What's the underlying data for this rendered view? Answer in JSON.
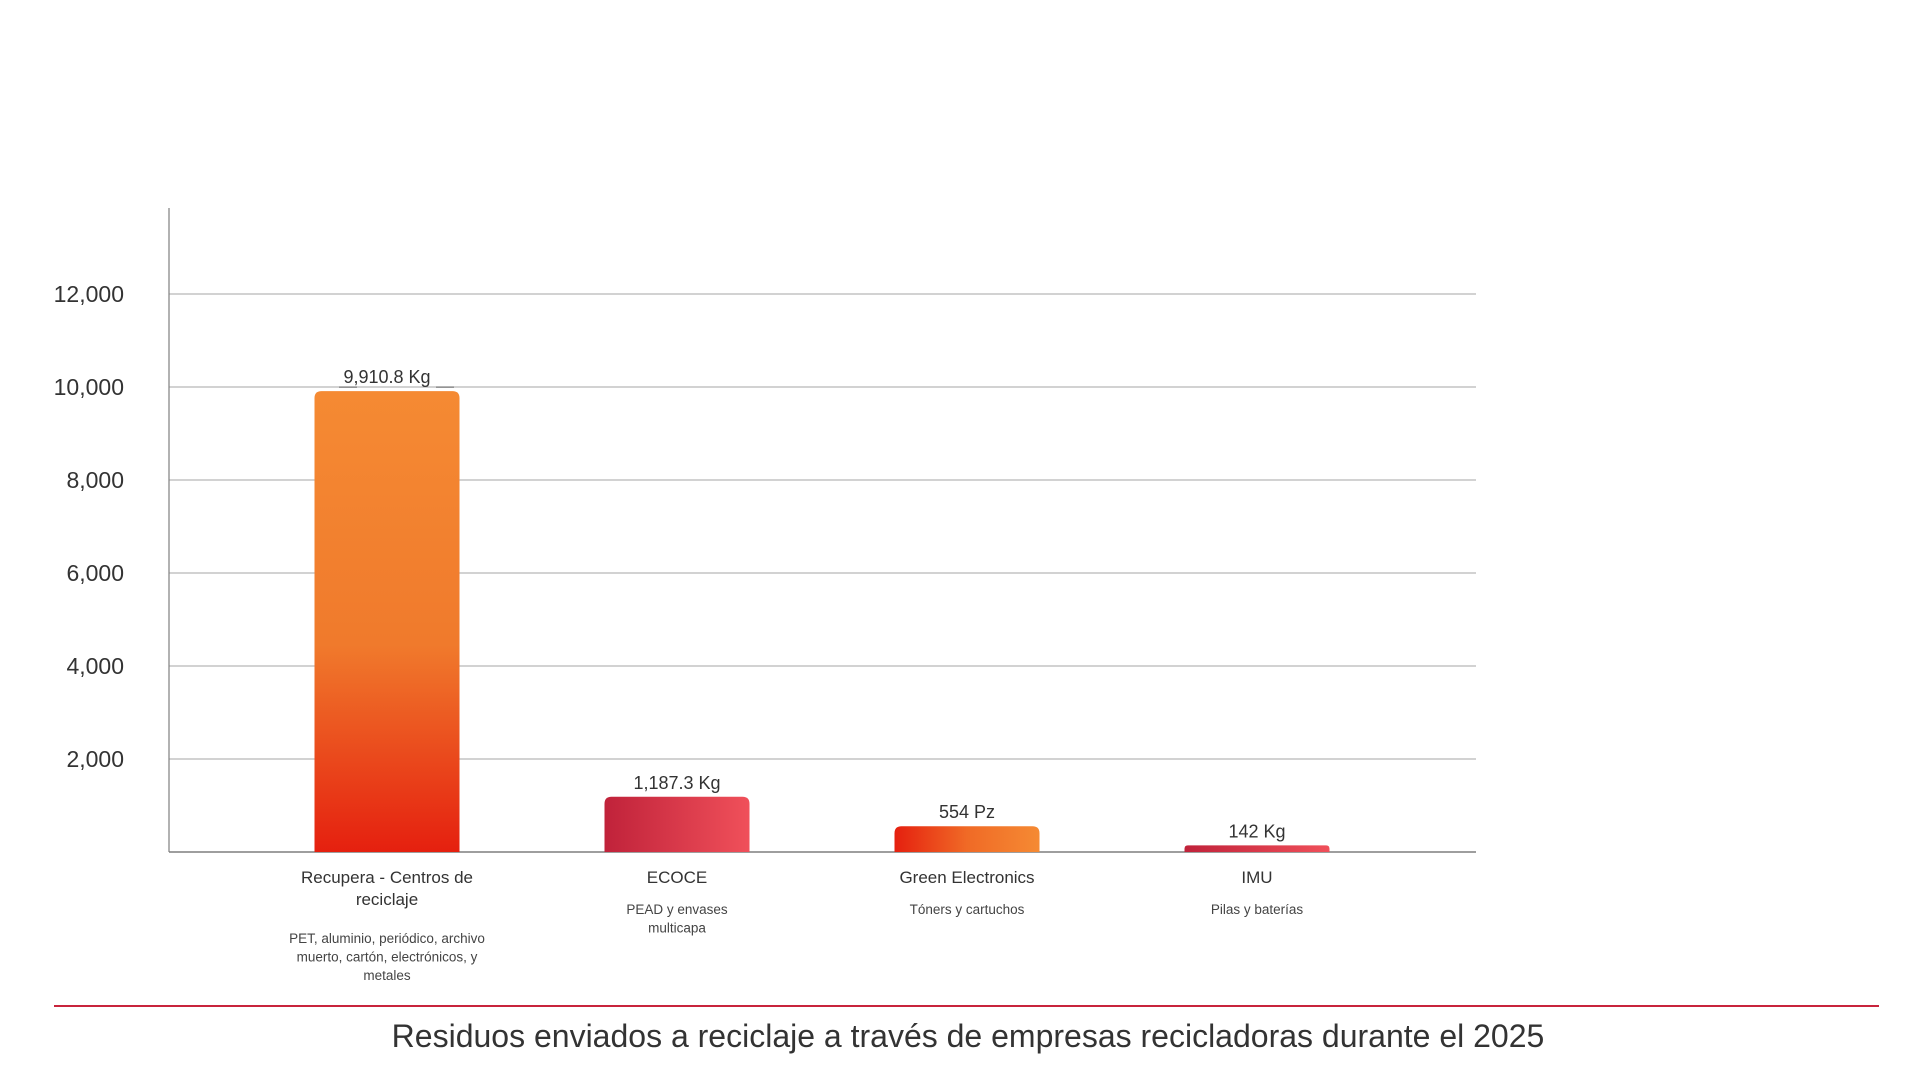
{
  "chart_data": {
    "type": "bar",
    "title": "Residuos enviados a reciclaje a través de empresas recicladoras durante el 2025",
    "xlabel": "",
    "ylabel": "",
    "ylim": [
      0,
      14000
    ],
    "yticks": [
      2000,
      4000,
      6000,
      8000,
      10000,
      12000
    ],
    "ytick_labels": [
      "2,000",
      "4,000",
      "6,000",
      "8,000",
      "10,000",
      "12,000"
    ],
    "grid": true,
    "legend": "none",
    "categories": [
      "Recupera - Centros de reciclaje",
      "ECOCE",
      "Green Electronics",
      "IMU"
    ],
    "category_lines": [
      [
        "Recupera - Centros de",
        "reciclaje"
      ],
      [
        "ECOCE"
      ],
      [
        "Green Electronics"
      ],
      [
        "IMU"
      ]
    ],
    "sublabels": [
      [
        "PET, aluminio, periódico, archivo",
        "muerto, cartón, electrónicos, y",
        "metales"
      ],
      [
        "PEAD y envases",
        "multicapa"
      ],
      [
        "Tóners y cartuchos"
      ],
      [
        "Pilas y baterías"
      ]
    ],
    "values": [
      9910.8,
      1187.3,
      554,
      142
    ],
    "value_labels": [
      "9,910.8 Kg",
      "1,187.3 Kg",
      "554 Pz",
      "142 Kg"
    ],
    "colors": {
      "orange_top": "#f58a33",
      "orange_bottom": "#e5200f",
      "red_left": "#c0223a",
      "red_right": "#f0505a",
      "grid": "#a6a6a6",
      "axis": "#7f7f7f",
      "footer_rule": "#c8243c"
    }
  }
}
